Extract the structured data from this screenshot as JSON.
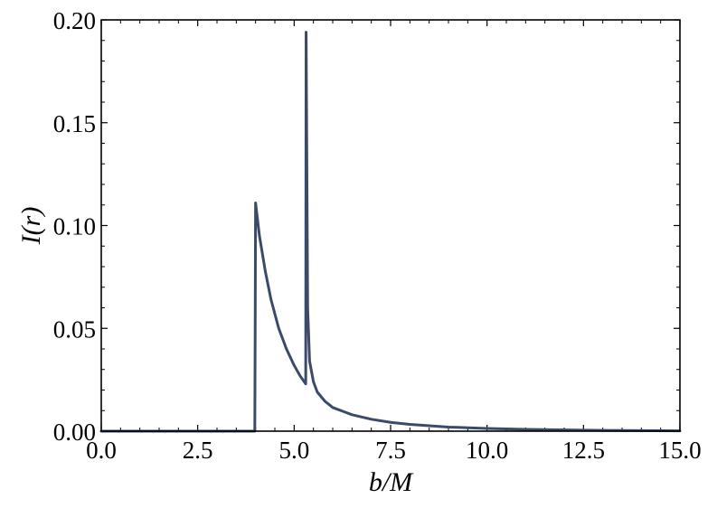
{
  "chart_data": {
    "type": "line",
    "xlabel": "b/M",
    "ylabel": "I(r)",
    "xlim": [
      0,
      15
    ],
    "ylim": [
      0,
      0.2
    ],
    "x_ticks": [
      "0.0",
      "2.5",
      "5.0",
      "7.5",
      "10.0",
      "12.5",
      "15.0"
    ],
    "y_ticks": [
      "0.00",
      "0.05",
      "0.10",
      "0.15",
      "0.20"
    ],
    "grid": false,
    "legend": "none",
    "series": [
      {
        "color": "#3b4a6b",
        "x": [
          0.0,
          3.98,
          3.99,
          4.0,
          4.1,
          4.25,
          4.4,
          4.6,
          4.8,
          5.0,
          5.15,
          5.28,
          5.3,
          5.31,
          5.35,
          5.4,
          5.5,
          5.6,
          5.8,
          6.0,
          6.5,
          7.0,
          7.5,
          8.0,
          9.0,
          10.0,
          11.0,
          12.0,
          13.0,
          14.0,
          15.0
        ],
        "y": [
          0.0,
          0.0,
          0.05,
          0.111,
          0.095,
          0.078,
          0.064,
          0.05,
          0.04,
          0.032,
          0.027,
          0.0235,
          0.023,
          0.194,
          0.06,
          0.034,
          0.024,
          0.019,
          0.0145,
          0.0115,
          0.008,
          0.0058,
          0.0043,
          0.0033,
          0.002,
          0.0013,
          0.0009,
          0.0006,
          0.0004,
          0.00025,
          0.00015
        ]
      }
    ]
  }
}
